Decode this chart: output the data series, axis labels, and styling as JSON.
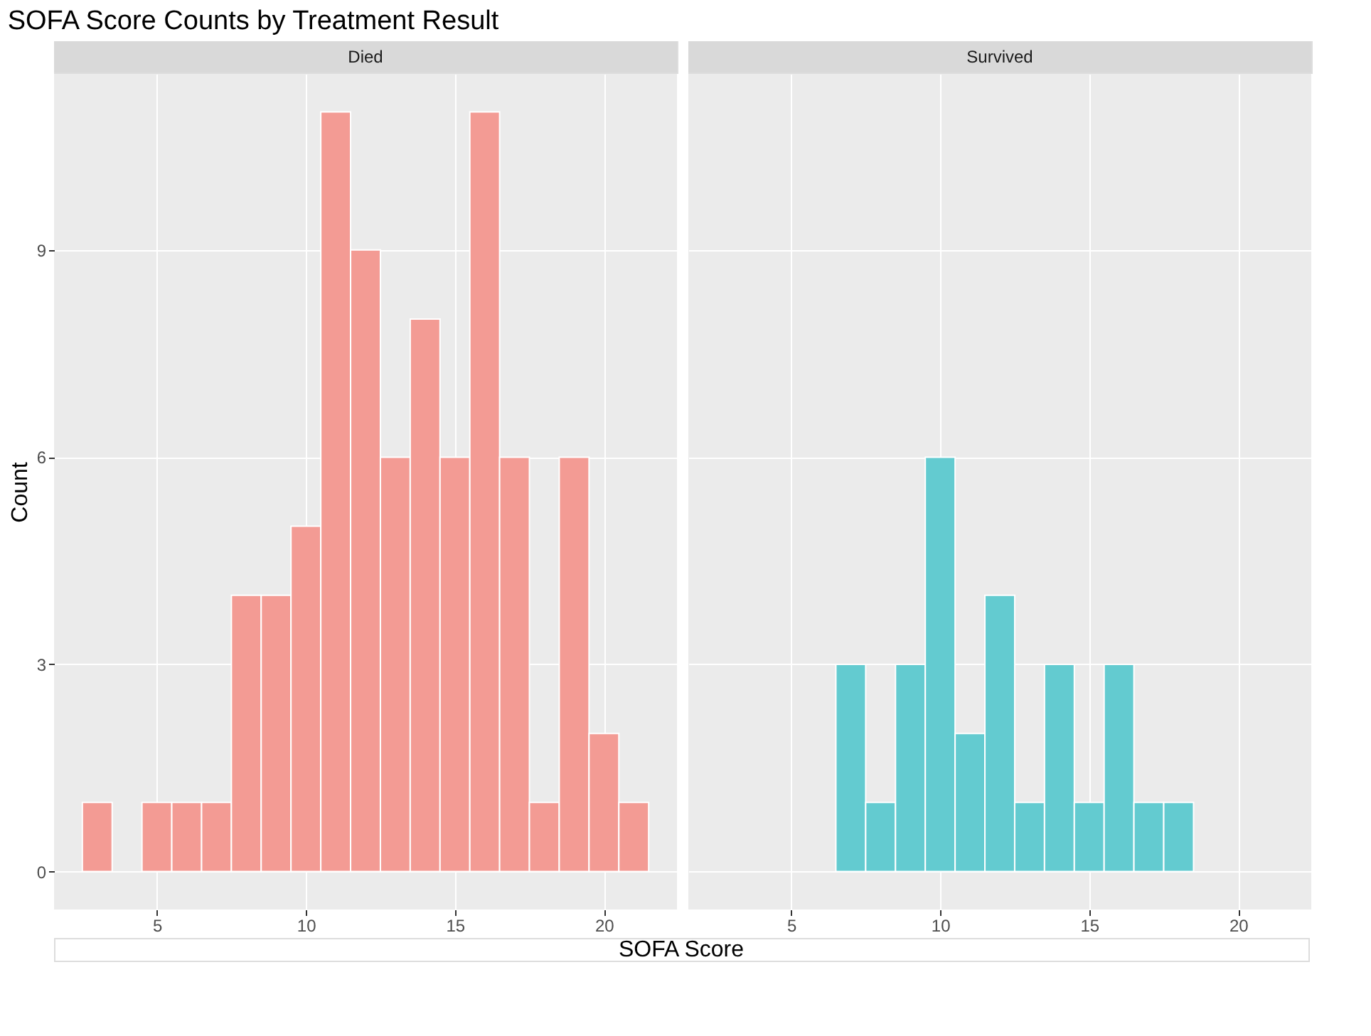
{
  "chart_data": [
    {
      "type": "histogram",
      "title": "SOFA Score Counts by Treatment Result",
      "subtitle": "Died",
      "xlabel": "SOFA Score",
      "ylabel": "Count",
      "color": "#f39b94",
      "bins": [
        2.5,
        3.5,
        4.5,
        5.5,
        6.5,
        7.5,
        8.5,
        9.5,
        10.5,
        11.5,
        12.5,
        13.5,
        14.5,
        15.5,
        16.5,
        17.5,
        18.5,
        19.5,
        20.5,
        21.5
      ],
      "values": [
        1,
        0,
        1,
        1,
        1,
        4,
        4,
        5,
        11,
        9,
        6,
        8,
        6,
        11,
        6,
        1,
        6,
        2,
        1
      ],
      "xlim": [
        1.55,
        22.45
      ],
      "xticks": [
        5,
        10,
        15,
        20
      ],
      "ylim": [
        -0.55,
        11.55
      ],
      "yticks": [
        0,
        3,
        6,
        9
      ],
      "grid": true
    },
    {
      "type": "histogram",
      "subtitle": "Survived",
      "color": "#63cbd0",
      "bins": [
        6.5,
        7.5,
        8.5,
        9.5,
        10.5,
        11.5,
        12.5,
        13.5,
        14.5,
        15.5,
        16.5,
        17.5,
        18.5
      ],
      "values": [
        3,
        1,
        3,
        6,
        2,
        4,
        1,
        3,
        1,
        3,
        1,
        1
      ],
      "xlim": [
        1.55,
        22.45
      ],
      "xticks": [
        5,
        10,
        15,
        20
      ],
      "ylim": [
        -0.55,
        11.55
      ],
      "yticks": [
        0,
        3,
        6,
        9
      ],
      "grid": true,
      "tick_labels": "x"
    }
  ]
}
